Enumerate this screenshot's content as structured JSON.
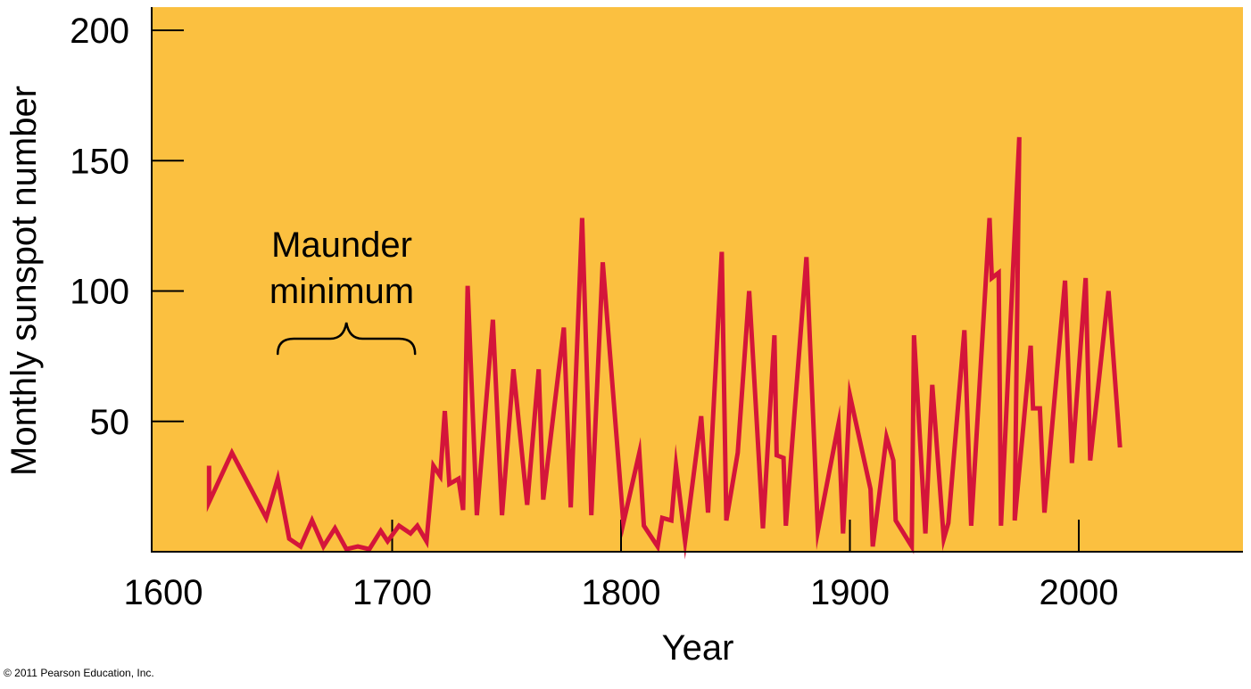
{
  "chart_data": {
    "type": "line",
    "title": "",
    "xlabel": "Year",
    "ylabel": "Monthly sunspot number",
    "xlim": [
      1600,
      2075
    ],
    "ylim": [
      0,
      210
    ],
    "xticks": [
      1600,
      1700,
      1800,
      1900,
      2000
    ],
    "yticks": [
      50,
      100,
      150,
      200
    ],
    "grid": false,
    "background_color": "#FBC040",
    "line_color": "#D4153A",
    "annotation": {
      "lines": [
        "Maunder",
        "minimum"
      ],
      "x_start": 1650,
      "x_end": 1710,
      "y": 75
    },
    "series": [
      {
        "points": [
          [
            1620,
            33
          ],
          [
            1620,
            19
          ],
          [
            1630,
            38
          ],
          [
            1645,
            13
          ],
          [
            1650,
            28
          ],
          [
            1655,
            5
          ],
          [
            1660,
            2
          ],
          [
            1665,
            12
          ],
          [
            1670,
            2
          ],
          [
            1675,
            9
          ],
          [
            1680,
            1
          ],
          [
            1685,
            2
          ],
          [
            1690,
            1
          ],
          [
            1695,
            8
          ],
          [
            1698,
            4
          ],
          [
            1703,
            10
          ],
          [
            1708,
            7
          ],
          [
            1711,
            10
          ],
          [
            1715,
            4
          ],
          [
            1718,
            33
          ],
          [
            1721,
            29
          ],
          [
            1723,
            54
          ],
          [
            1725,
            26
          ],
          [
            1729,
            28
          ],
          [
            1731,
            16
          ],
          [
            1733,
            102
          ],
          [
            1737,
            14
          ],
          [
            1744,
            89
          ],
          [
            1748,
            14
          ],
          [
            1753,
            70
          ],
          [
            1759,
            18
          ],
          [
            1764,
            70
          ],
          [
            1766,
            20
          ],
          [
            1775,
            86
          ],
          [
            1778,
            17
          ],
          [
            1783,
            128
          ],
          [
            1787,
            14
          ],
          [
            1792,
            111
          ],
          [
            1801,
            11
          ],
          [
            1808,
            38
          ],
          [
            1810,
            10
          ],
          [
            1816,
            2
          ],
          [
            1818,
            13
          ],
          [
            1822,
            12
          ],
          [
            1824,
            33
          ],
          [
            1828,
            4
          ],
          [
            1835,
            52
          ],
          [
            1838,
            15
          ],
          [
            1844,
            115
          ],
          [
            1846,
            12
          ],
          [
            1851,
            38
          ],
          [
            1856,
            100
          ],
          [
            1862,
            9
          ],
          [
            1867,
            83
          ],
          [
            1868,
            37
          ],
          [
            1871,
            36
          ],
          [
            1872,
            10
          ],
          [
            1881,
            113
          ],
          [
            1886,
            8
          ],
          [
            1895,
            49
          ],
          [
            1897,
            7
          ],
          [
            1900,
            60
          ],
          [
            1909,
            24
          ],
          [
            1910,
            2
          ],
          [
            1916,
            44
          ],
          [
            1919,
            35
          ],
          [
            1920,
            12
          ],
          [
            1927,
            2
          ],
          [
            1928,
            83
          ],
          [
            1933,
            7
          ],
          [
            1936,
            64
          ],
          [
            1941,
            5
          ],
          [
            1943,
            11
          ],
          [
            1950,
            85
          ],
          [
            1953,
            10
          ],
          [
            1961,
            128
          ],
          [
            1962,
            105
          ],
          [
            1965,
            107
          ],
          [
            1966,
            10
          ],
          [
            1974,
            159
          ],
          [
            1972,
            12
          ],
          [
            1979,
            79
          ],
          [
            1980,
            55
          ],
          [
            1983,
            55
          ],
          [
            1985,
            15
          ],
          [
            1994,
            104
          ],
          [
            1997,
            34
          ],
          [
            2003,
            105
          ],
          [
            2005,
            35
          ],
          [
            2013,
            100
          ],
          [
            2018,
            40
          ]
        ]
      }
    ]
  },
  "copyright": "© 2011 Pearson Education, Inc."
}
